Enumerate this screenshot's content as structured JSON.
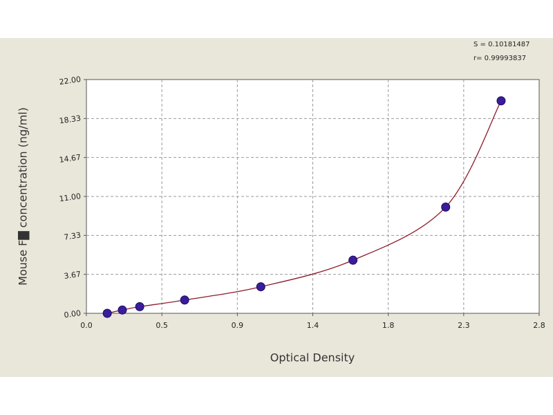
{
  "chart_data": {
    "type": "scatter",
    "y_label": "Mouse F▇ concentration (ng/ml)",
    "x_label": "Optical Density",
    "annotations": [
      "S = 0.10181487",
      "r= 0.99993837"
    ],
    "x": [
      0.127,
      0.219,
      0.325,
      0.599,
      1.063,
      1.625,
      2.19,
      2.528
    ],
    "values": [
      0,
      0.3125,
      0.625,
      1.25,
      2.5,
      5,
      10,
      20
    ],
    "color": "#3b1c9c",
    "line_color": "#8b1a2a",
    "xlim": [
      0,
      2.76
    ],
    "xticks": [
      {
        "value": 0,
        "label": "0.0"
      },
      {
        "value": 0.46,
        "label": "0.5"
      },
      {
        "value": 0.92,
        "label": "0.9"
      },
      {
        "value": 1.38,
        "label": "1.4"
      },
      {
        "value": 1.84,
        "label": "1.8"
      },
      {
        "value": 2.3,
        "label": "2.3"
      },
      {
        "value": 2.76,
        "label": "2.8"
      }
    ],
    "ylim": [
      0,
      22
    ],
    "yticks": [
      {
        "value": 0,
        "label": "0.00"
      },
      {
        "value": 3.6667,
        "label": "3.67"
      },
      {
        "value": 7.3333,
        "label": "7.33"
      },
      {
        "value": 11,
        "label": "11.00"
      },
      {
        "value": 14.6667,
        "label": "14.67"
      },
      {
        "value": 18.3333,
        "label": "18.33"
      },
      {
        "value": 22,
        "label": "22.00"
      }
    ],
    "grid": true
  }
}
